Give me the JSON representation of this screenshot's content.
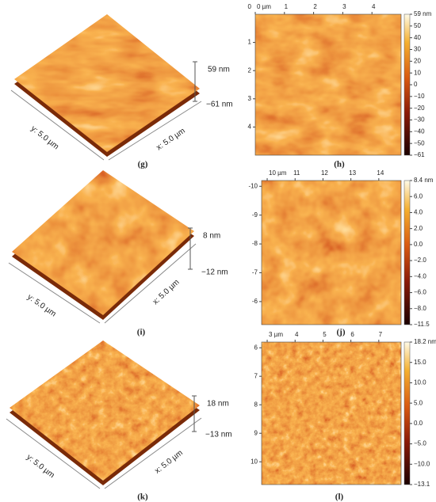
{
  "panels": [
    {
      "label": "(g)",
      "z_max": "59 nm",
      "z_min": "−61 nm",
      "y_axis": "y: 5.0 µm",
      "x_axis": "x: 5.0 µm"
    },
    {
      "label": "(h)",
      "top_ticks": [
        "0 µm",
        "1",
        "2",
        "3",
        "4"
      ],
      "left_ticks": [
        "0",
        "1",
        "2",
        "3",
        "4"
      ],
      "colorbar_ticks": [
        "59 nm",
        "50",
        "40",
        "30",
        "20",
        "10",
        "0",
        "−10",
        "−20",
        "−30",
        "−40",
        "−50",
        "−61"
      ]
    },
    {
      "label": "(i)",
      "z_max": "8 nm",
      "z_min": "−12 nm",
      "y_axis": "y: 5.0 µm",
      "x_axis": "x: 5.0 µm"
    },
    {
      "label": "(j)",
      "top_ticks": [
        "10 µm",
        "11",
        "12",
        "13",
        "14"
      ],
      "left_ticks": [
        "-10",
        "-9",
        "-8",
        "-7",
        "-6"
      ],
      "colorbar_ticks": [
        "8.4 nm",
        "6.0",
        "4.0",
        "2.0",
        "0.0",
        "−2.0",
        "−4.0",
        "−6.0",
        "−8.0",
        "−11.5"
      ]
    },
    {
      "label": "(k)",
      "z_max": "18 nm",
      "z_min": "−13 nm",
      "y_axis": "y: 5.0 µm",
      "x_axis": "x: 5.0 µm"
    },
    {
      "label": "(l)",
      "top_ticks": [
        "3 µm",
        "4",
        "5",
        "6",
        "7"
      ],
      "left_ticks": [
        "6",
        "7",
        "8",
        "9",
        "10"
      ],
      "colorbar_ticks": [
        "18.2 nm",
        "15.0",
        "10.0",
        "5.0",
        "0.0",
        "−5.0",
        "−10.0",
        "−13.1"
      ]
    }
  ]
}
